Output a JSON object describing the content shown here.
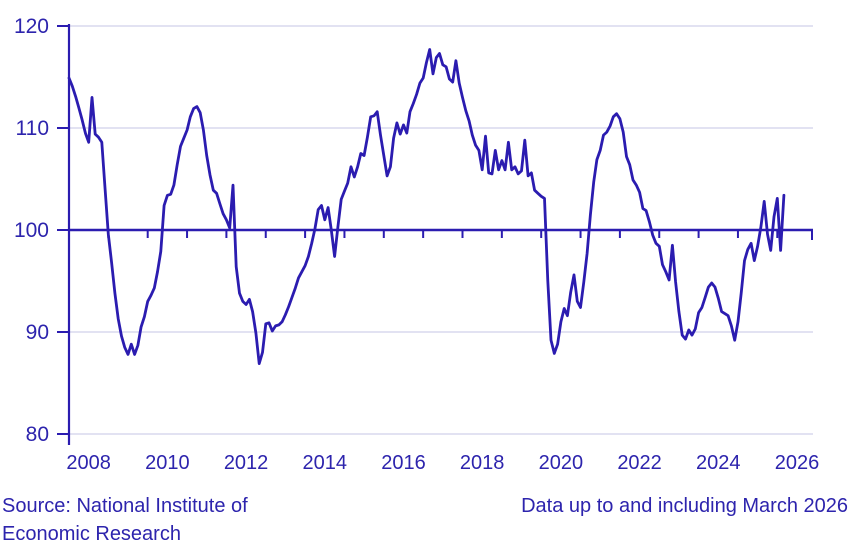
{
  "footer": {
    "source_line_1": "Source: National Institute of",
    "source_line_2": "Economic Research",
    "data_note": "Data up to and including March 2026"
  },
  "chart_data": {
    "type": "line",
    "title": "",
    "xlabel": "",
    "ylabel": "",
    "frequency": "monthly",
    "start": "2008-01",
    "end": "2026-03",
    "baseline": 100,
    "ylim": [
      80,
      120
    ],
    "y_ticks": [
      80,
      90,
      100,
      110,
      120
    ],
    "x_tick_labels": [
      "2008",
      "2010",
      "2012",
      "2014",
      "2016",
      "2018",
      "2020",
      "2022",
      "2024",
      "2026"
    ],
    "x_range_years": [
      2008,
      2026
    ],
    "grid": "horizontal-only",
    "legend": "none",
    "colors": {
      "line": "#2b1cb0",
      "text": "#2d24ad",
      "grid": "#d8d9ed",
      "background": "#ffffff"
    },
    "values": [
      114.9,
      114.1,
      113.1,
      112.0,
      110.8,
      109.5,
      108.6,
      113.0,
      109.4,
      109.1,
      108.6,
      104.0,
      99.6,
      96.8,
      93.8,
      91.3,
      89.6,
      88.5,
      87.8,
      88.8,
      87.8,
      88.7,
      90.5,
      91.5,
      93.0,
      93.6,
      94.3,
      95.9,
      97.9,
      102.4,
      103.4,
      103.5,
      104.4,
      106.4,
      108.2,
      109.0,
      109.8,
      111.1,
      111.9,
      112.1,
      111.5,
      109.8,
      107.3,
      105.4,
      103.9,
      103.6,
      102.6,
      101.6,
      101.0,
      100.2,
      104.4,
      96.4,
      93.8,
      93.0,
      92.7,
      93.2,
      92.0,
      89.9,
      86.9,
      88.0,
      90.8,
      90.9,
      90.1,
      90.6,
      90.7,
      91.0,
      91.7,
      92.5,
      93.4,
      94.3,
      95.3,
      95.9,
      96.5,
      97.4,
      98.7,
      100.1,
      102.0,
      102.4,
      101.0,
      102.2,
      100.0,
      97.4,
      100.3,
      103.0,
      103.8,
      104.6,
      106.2,
      105.2,
      106.2,
      107.5,
      107.3,
      109.1,
      111.1,
      111.2,
      111.6,
      109.3,
      107.3,
      105.3,
      106.2,
      109.0,
      110.5,
      109.4,
      110.3,
      109.5,
      111.6,
      112.4,
      113.3,
      114.4,
      114.9,
      116.4,
      117.7,
      115.3,
      116.9,
      117.3,
      116.2,
      116.0,
      114.8,
      114.5,
      116.6,
      114.4,
      113.0,
      111.7,
      110.7,
      109.3,
      108.3,
      107.8,
      105.9,
      109.2,
      105.6,
      105.5,
      107.8,
      105.9,
      106.8,
      105.9,
      108.6,
      105.9,
      106.2,
      105.5,
      105.8,
      108.8,
      105.3,
      105.6,
      103.9,
      103.6,
      103.3,
      103.1,
      95.0,
      89.2,
      87.9,
      88.8,
      91.0,
      92.3,
      91.6,
      93.9,
      95.6,
      93.0,
      92.4,
      94.9,
      97.7,
      101.5,
      104.7,
      106.9,
      107.8,
      109.3,
      109.6,
      110.2,
      111.1,
      111.4,
      110.9,
      109.6,
      107.2,
      106.4,
      104.9,
      104.4,
      103.7,
      102.1,
      101.9,
      100.8,
      99.5,
      98.7,
      98.4,
      96.6,
      95.9,
      95.1,
      98.5,
      94.9,
      92.0,
      89.7,
      89.3,
      90.2,
      89.7,
      90.3,
      91.9,
      92.4,
      93.4,
      94.4,
      94.8,
      94.4,
      93.3,
      92.0,
      91.8,
      91.6,
      90.6,
      89.2,
      91.0,
      93.8,
      97.0,
      98.1,
      98.7,
      97.0,
      98.4,
      100.3,
      102.8,
      99.6,
      98.0,
      101.3,
      103.1,
      98.0,
      103.4
    ]
  }
}
